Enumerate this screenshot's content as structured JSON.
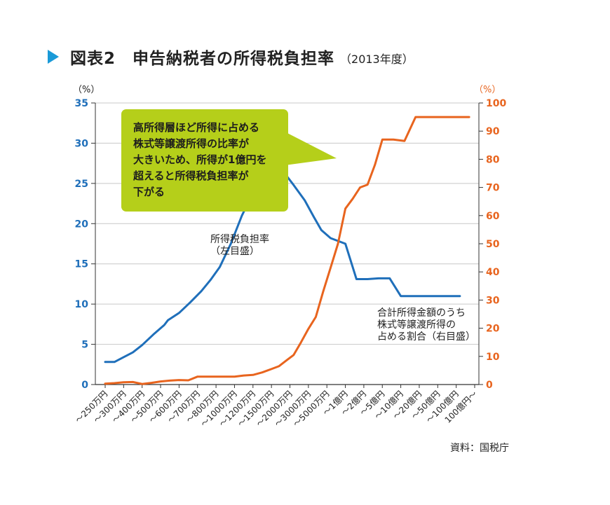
{
  "title": {
    "main": "図表2　申告納税者の所得税負担率",
    "sub": "（2013年度）"
  },
  "source": "資料：国税庁",
  "colors": {
    "accent": "#1a9ad8",
    "tax_rate": "#1f6fba",
    "share": "#e8641e",
    "callout": "#b5cf1a",
    "grid": "#c8c8c8"
  },
  "chart_data": {
    "type": "line",
    "categories": [
      "～250万円",
      "～300万円",
      "～400万円",
      "～500万円",
      "～600万円",
      "～700万円",
      "～800万円",
      "～1000万円",
      "～1200万円",
      "～1500万円",
      "～2000万円",
      "～3000万円",
      "～5000万円",
      "～1億円",
      "～2億円",
      "～5億円",
      "～10億円",
      "～20億円",
      "～50億円",
      "～100億円",
      "100億円～"
    ],
    "left_axis": {
      "unit": "（%）",
      "ylim": [
        0,
        35
      ],
      "ticks": [
        0,
        5,
        10,
        15,
        20,
        25,
        30,
        35
      ]
    },
    "right_axis": {
      "unit": "（%）",
      "ylim": [
        0,
        100
      ],
      "ticks": [
        0,
        10,
        20,
        30,
        40,
        50,
        60,
        70,
        80,
        90,
        100
      ]
    },
    "grid": true,
    "series": [
      {
        "name": "所得税負担率（左目盛）",
        "axis": "left",
        "label_lines": [
          "所得税負担率",
          "（左目盛）"
        ],
        "x": [
          0.0,
          0.25,
          0.5,
          1.0,
          1.5,
          2.0,
          2.6,
          3.2,
          3.4,
          4.0,
          4.6,
          5.2,
          5.7,
          6.2,
          6.8,
          7.4,
          8.0,
          8.6,
          9.2,
          9.7,
          10.2,
          10.8,
          11.3,
          11.7,
          12.2,
          13.0,
          13.6,
          14.2,
          14.8,
          15.4,
          16.0,
          16.6,
          17.2,
          17.8,
          18.4,
          19.2
        ],
        "values": [
          2.8,
          2.8,
          2.8,
          3.4,
          4.0,
          4.9,
          6.2,
          7.4,
          8.0,
          8.9,
          10.2,
          11.6,
          13.0,
          14.6,
          17.5,
          21.0,
          23.8,
          25.5,
          27.5,
          26.3,
          24.8,
          22.9,
          20.8,
          19.2,
          18.2,
          17.5,
          13.1,
          13.1,
          13.2,
          13.2,
          11.0,
          11.0,
          11.0,
          11.0,
          11.0,
          11.0
        ]
      },
      {
        "name": "合計所得金額のうち株式等譲渡所得の占める割合（右目盛）",
        "axis": "right",
        "label_lines": [
          "合計所得金額のうち",
          "株式等譲渡所得の",
          "占める割合（右目盛）"
        ],
        "x": [
          0,
          0.5,
          1,
          1.5,
          2,
          2.5,
          3,
          3.5,
          4,
          4.5,
          5,
          5.5,
          6,
          6.5,
          7,
          7.5,
          8,
          8.5,
          9,
          9.4,
          9.8,
          10.2,
          10.6,
          11.0,
          11.4,
          11.8,
          12.2,
          12.6,
          13.0,
          13.4,
          13.8,
          14.2,
          14.6,
          15.0,
          15.6,
          16.2,
          16.8,
          17.4,
          18.0,
          18.6,
          19.2,
          19.7
        ],
        "values": [
          0.3,
          0.5,
          0.8,
          0.9,
          0.2,
          0.6,
          1.1,
          1.4,
          1.6,
          1.5,
          2.8,
          2.8,
          2.8,
          2.8,
          2.8,
          3.2,
          3.4,
          4.3,
          5.5,
          6.5,
          8.5,
          10.5,
          15.0,
          19.8,
          24.0,
          33.0,
          41.5,
          50.0,
          62.5,
          66.0,
          70.0,
          71.0,
          78.0,
          87.0,
          87.0,
          86.5,
          95.0,
          95.0,
          95.0,
          95.0,
          95.0,
          95.0
        ]
      }
    ],
    "callout": {
      "lines": [
        "高所得層ほど所得に占める",
        "株式等譲渡所得の比率が",
        "大きいため、所得が1億円を",
        "超えると所得税負担率が",
        "下がる"
      ]
    }
  }
}
